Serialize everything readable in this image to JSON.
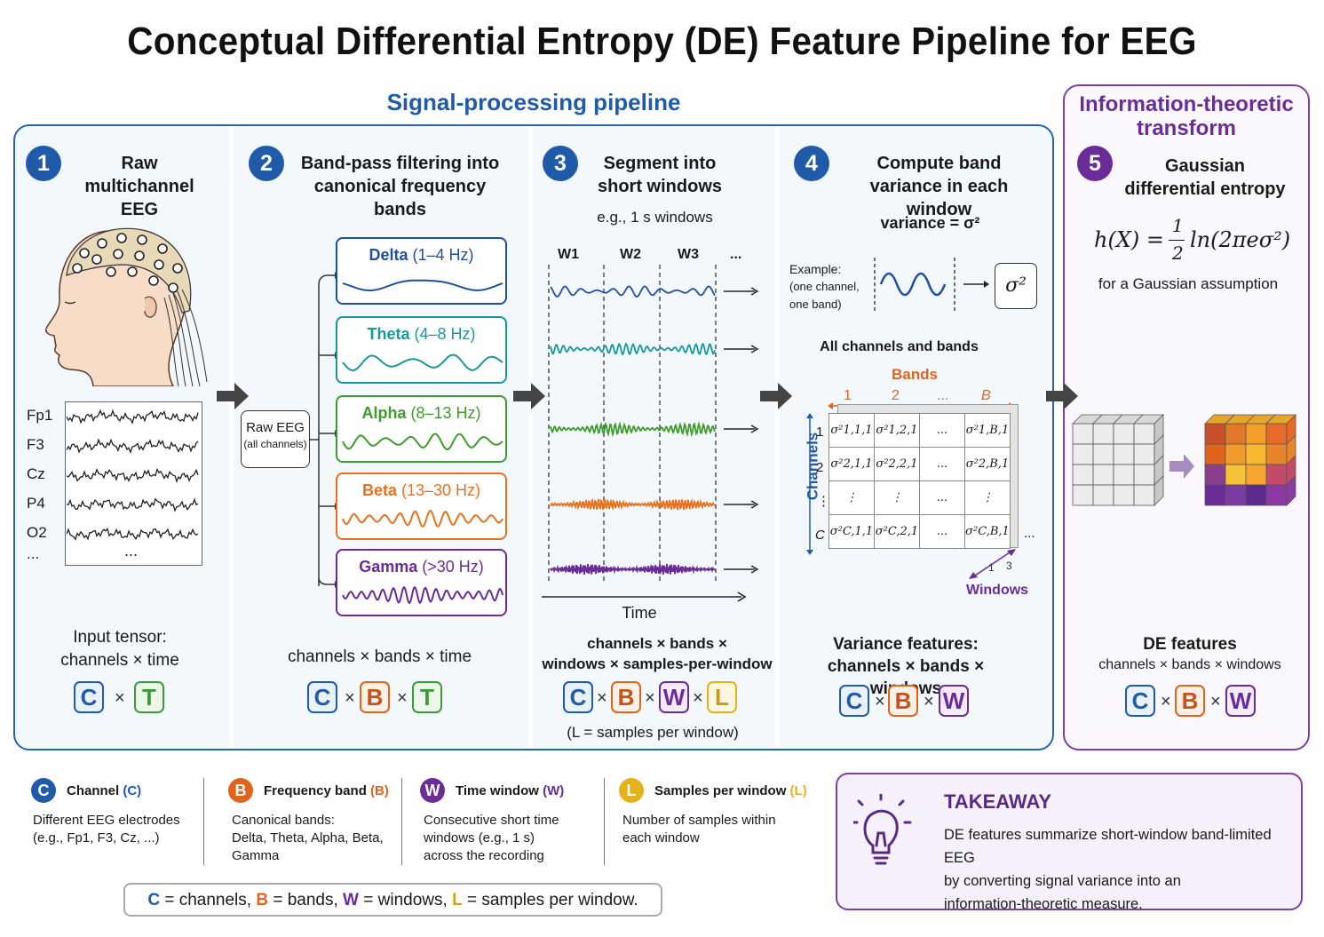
{
  "title": "Conceptual Differential Entropy (DE) Feature Pipeline for EEG",
  "pipeline_label": "Signal-processing pipeline",
  "info_label": "Information-theoretic transform",
  "steps": [
    {
      "num": "1",
      "title": "Raw multichannel EEG"
    },
    {
      "num": "2",
      "title": "Band-pass filtering into canonical frequency bands"
    },
    {
      "num": "3",
      "title": "Segment into short windows",
      "subtitle": "e.g., 1 s windows"
    },
    {
      "num": "4",
      "title": "Compute band variance in each window",
      "subtitle": "variance = σ²"
    },
    {
      "num": "5",
      "title": "Gaussian differential entropy",
      "formula_lhs": "h(X) =",
      "formula_num": "1",
      "formula_den": "2",
      "formula_rhs": "ln(2πeσ²)",
      "note": "for a Gaussian assumption"
    }
  ],
  "channels": [
    "Fp1",
    "F3",
    "Cz",
    "P4",
    "O2",
    "..."
  ],
  "raw_eeg_box": {
    "line1": "Raw EEG",
    "line2": "(all channels)"
  },
  "bands": [
    {
      "name": "Delta",
      "range": "(1–4 Hz)",
      "color": "#1f4fa0"
    },
    {
      "name": "Theta",
      "range": "(4–8 Hz)",
      "color": "#18989a"
    },
    {
      "name": "Alpha",
      "range": "(8–13 Hz)",
      "color": "#3f9b2c"
    },
    {
      "name": "Beta",
      "range": "(13–30 Hz)",
      "color": "#e8711c"
    },
    {
      "name": "Gamma",
      "range": "(>30 Hz)",
      "color": "#6a2c96"
    }
  ],
  "windows": [
    "W1",
    "W2",
    "W3",
    "..."
  ],
  "time_label": "Time",
  "example": {
    "line1": "Example:",
    "line2": "(one channel,",
    "line3": "one band)",
    "symbol": "σ²"
  },
  "all_channels_label": "All channels and bands",
  "bands_axis": {
    "label": "Bands",
    "ticks": [
      "1",
      "2",
      "...",
      "B"
    ]
  },
  "channels_axis": {
    "label": "Channels",
    "ticks": [
      "1",
      "2",
      "⋮",
      "C"
    ]
  },
  "windows_axis": {
    "label": "Windows",
    "ticks": [
      "1",
      "3"
    ],
    "more": "..."
  },
  "variance_table": [
    [
      "σ²1,1,1",
      "σ²1,2,1",
      "...",
      "σ²1,B,1"
    ],
    [
      "σ²2,1,1",
      "σ²2,2,1",
      "...",
      "σ²2,B,1"
    ],
    [
      "⋮",
      "⋮",
      "...",
      "⋮"
    ],
    [
      "σ²C,1,1",
      "σ²C,2,1",
      "...",
      "σ²C,B,1"
    ]
  ],
  "shapes": {
    "s1_label1": "Input tensor:",
    "s1_label2": "channels × time",
    "s2_label": "channels × bands × time",
    "s3_label1": "channels × bands ×",
    "s3_label2": "windows × samples-per-window",
    "s3_note": "(L = samples per window)",
    "s4_label1": "Variance features:",
    "s4_label2": "channels × bands × windows",
    "s5_label1": "DE features",
    "s5_label2": "channels × bands × windows"
  },
  "symbols": {
    "C": "C",
    "B": "B",
    "W": "W",
    "T": "T",
    "L": "L",
    "times": "×"
  },
  "legend": [
    {
      "letter": "C",
      "title": "Channel",
      "tag": "(C)",
      "desc1": "Different EEG electrodes",
      "desc2": "(e.g., Fp1, F3, Cz, ...)",
      "desc3": "",
      "color": "#1f5ba8"
    },
    {
      "letter": "B",
      "title": "Frequency band",
      "tag": "(B)",
      "desc1": "Canonical bands:",
      "desc2": "Delta, Theta, Alpha, Beta,",
      "desc3": "Gamma",
      "color": "#e0641b"
    },
    {
      "letter": "W",
      "title": "Time window",
      "tag": "(W)",
      "desc1": "Consecutive short time",
      "desc2": "windows (e.g., 1 s)",
      "desc3": "across the recording",
      "color": "#6a2c96"
    },
    {
      "letter": "L",
      "title": "Samples per window",
      "tag": "(L)",
      "desc1": "Number of samples within",
      "desc2": "each window",
      "desc3": "",
      "color": "#e4b21b"
    }
  ],
  "summary": {
    "c": "C",
    "c_text": " = channels, ",
    "b": "B",
    "b_text": " = bands, ",
    "w": "W",
    "w_text": " = windows, ",
    "l": "L",
    "l_text": " = samples per window."
  },
  "takeaway": {
    "title": "TAKEAWAY",
    "line1": "DE features summarize short-window band-limited EEG",
    "line2": "by converting signal variance into an",
    "line3": "information-theoretic measure."
  }
}
